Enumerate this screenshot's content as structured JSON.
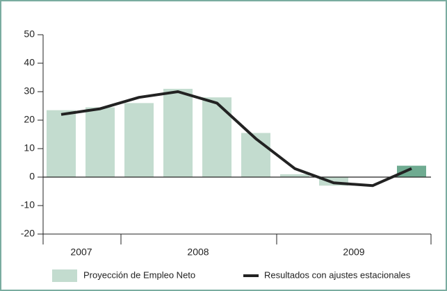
{
  "chart_data": {
    "type": "bar_line",
    "categories": [
      null,
      null,
      null,
      null,
      null,
      null,
      null,
      null,
      null,
      null
    ],
    "x_groups": [
      {
        "label": "2007",
        "start": 0,
        "end": 2
      },
      {
        "label": "2008",
        "start": 2,
        "end": 6
      },
      {
        "label": "2009",
        "start": 6,
        "end": 10
      }
    ],
    "series": [
      {
        "name": "Proyección de Empleo Neto",
        "kind": "bar",
        "color": "#c3dccf",
        "colors": [
          "#c3dccf",
          "#c3dccf",
          "#c3dccf",
          "#c3dccf",
          "#c3dccf",
          "#c3dccf",
          "#c3dccf",
          "#c3dccf",
          "#c3dccf",
          "#6fab91"
        ],
        "values": [
          23.5,
          24.5,
          26,
          31,
          28,
          15.5,
          1,
          -3,
          0,
          4
        ]
      },
      {
        "name": "Resultados con ajustes estacionales",
        "kind": "line",
        "color": "#222222",
        "values": [
          22,
          24,
          28,
          30,
          26,
          13.5,
          3,
          -2,
          -3,
          3
        ]
      }
    ],
    "ylim": [
      -20,
      50
    ],
    "yticks": [
      -20,
      -10,
      0,
      10,
      20,
      30,
      40,
      50
    ]
  }
}
